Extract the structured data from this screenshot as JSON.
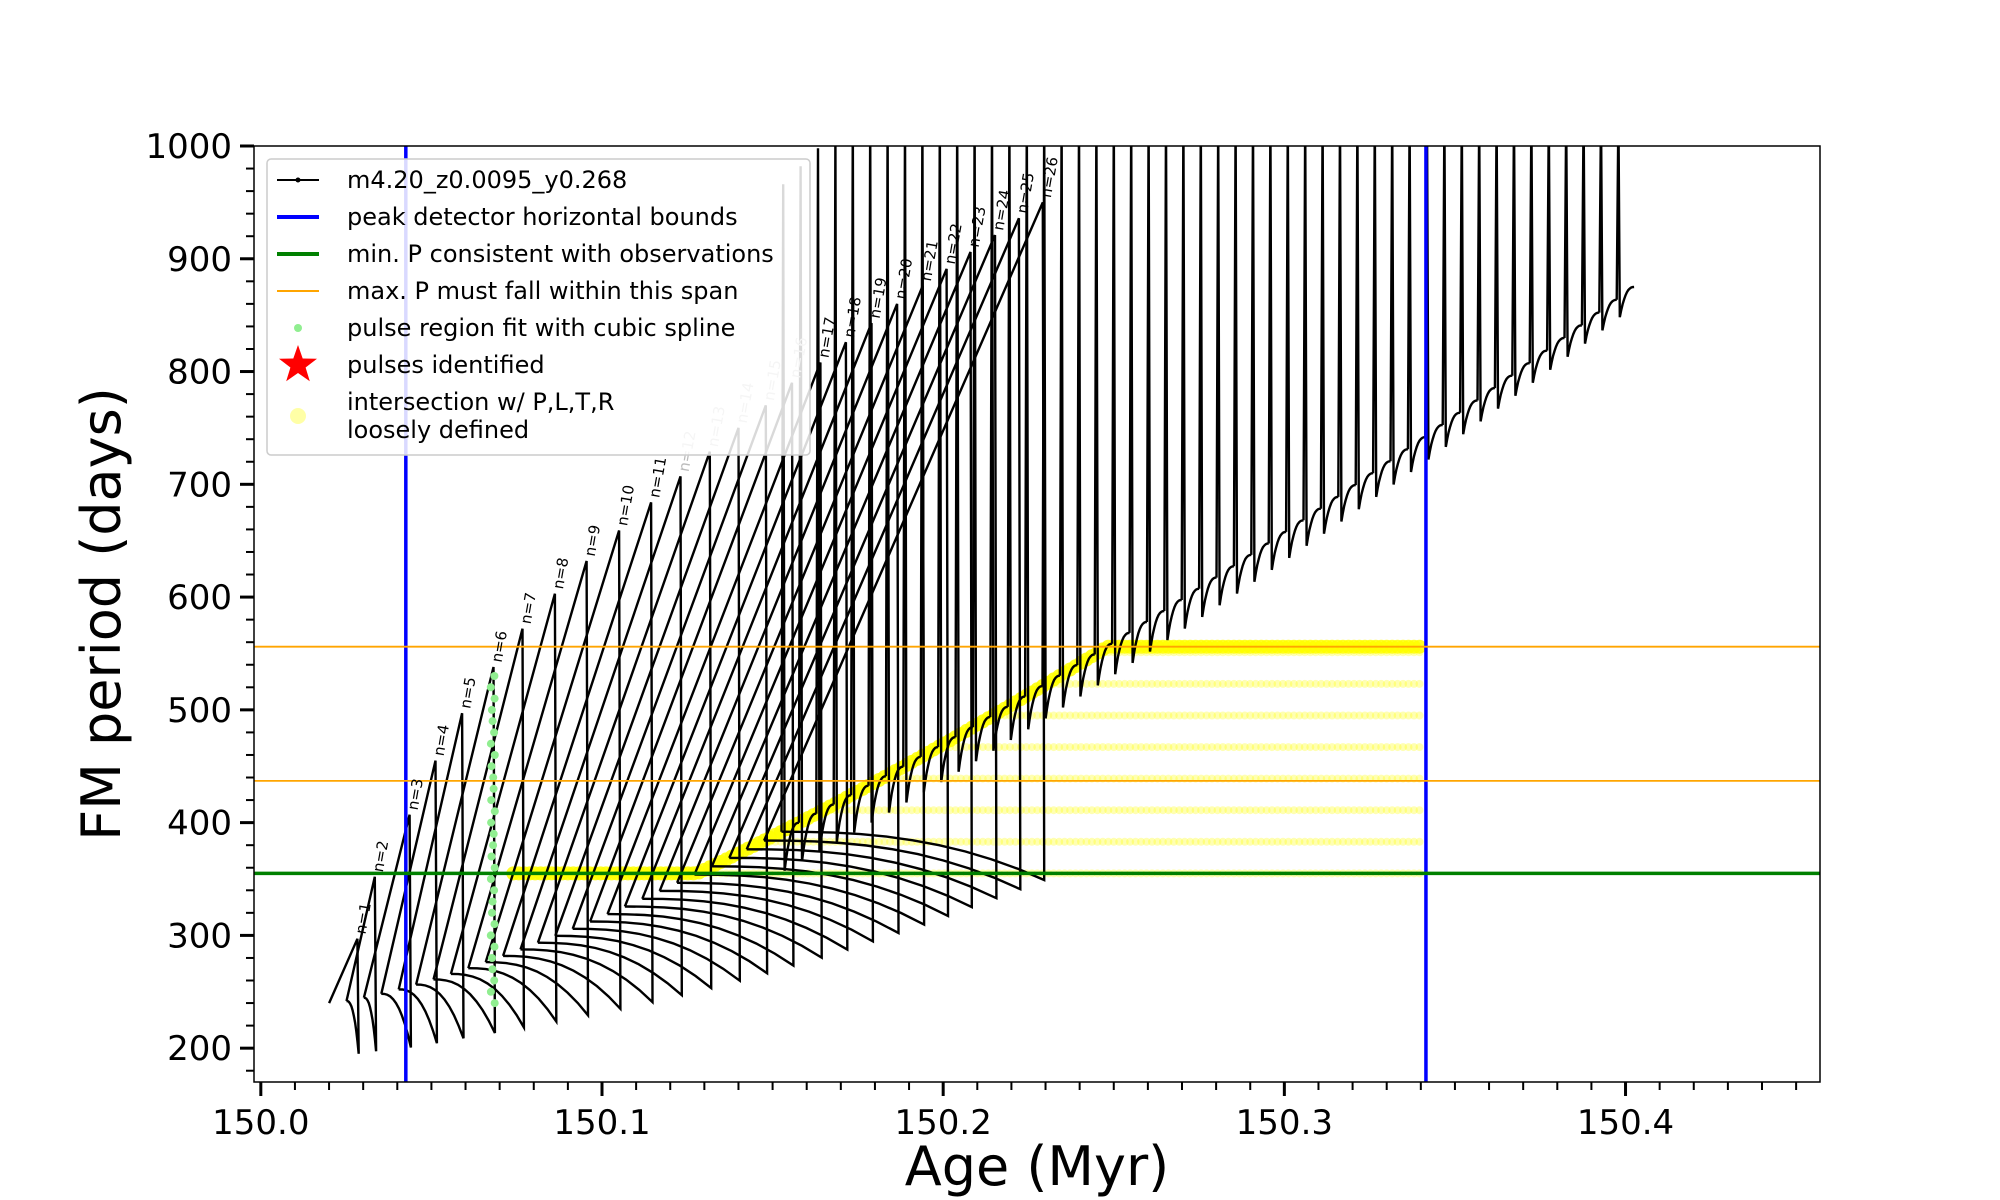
{
  "chart_data": {
    "type": "line",
    "title": "",
    "xlabel": "Age (Myr)",
    "ylabel": "FM period (days)",
    "xlim": [
      149.998,
      150.457
    ],
    "ylim": [
      170,
      1000
    ],
    "xticks_major": [
      150.0,
      150.1,
      150.2,
      150.3,
      150.4
    ],
    "xtick_labels": [
      "150.0",
      "150.1",
      "150.2",
      "150.3",
      "150.4"
    ],
    "xtick_minor_step": 0.01,
    "yticks_major": [
      200,
      300,
      400,
      500,
      600,
      700,
      800,
      900,
      1000
    ],
    "ytick_labels": [
      "200",
      "300",
      "400",
      "500",
      "600",
      "700",
      "800",
      "900",
      "1000"
    ],
    "ytick_minor_step": 20,
    "grid": false,
    "legend_position": "top-left",
    "legend": [
      {
        "key": "track",
        "label": "m4.20_z0.0095_y0.268",
        "color": "#000000",
        "marker": "line-dot"
      },
      {
        "key": "peak_bounds",
        "label": "peak detector horizontal bounds",
        "color": "#0000ff",
        "marker": "line"
      },
      {
        "key": "min_p",
        "label": "min. P consistent with observations",
        "color": "#008000",
        "marker": "line"
      },
      {
        "key": "max_p",
        "label": "max. P must fall within this span",
        "color": "#ffa500",
        "marker": "thin-line"
      },
      {
        "key": "spline",
        "label": "pulse region fit with cubic spline",
        "color": "#90ee90",
        "marker": "dot"
      },
      {
        "key": "pulses",
        "label": "pulses identified",
        "color": "#ff0000",
        "marker": "star"
      },
      {
        "key": "intersection",
        "label": "intersection w/ P,L,T,R",
        "label2": "loosely defined",
        "color": "#ffff00",
        "marker": "faint-dot"
      }
    ],
    "reference_lines": {
      "vertical_blue_x": [
        150.0425,
        150.3415
      ],
      "horizontal_green_y": 355,
      "horizontal_orange_y": [
        437,
        556
      ]
    },
    "track": {
      "t_start": 150.02,
      "pulse_interval": 0.0051,
      "n_pulses": 75,
      "baseline_start": 240,
      "baseline_end": 875,
      "min_start": 180,
      "min_end": 950,
      "clip_ymax": 1000
    },
    "pulse_peaks": [
      {
        "label": "n=1",
        "x": 150.0283,
        "y": 297,
        "faded": false
      },
      {
        "label": "n=2",
        "x": 150.0334,
        "y": 352,
        "faded": false
      },
      {
        "label": "n=3",
        "x": 150.0436,
        "y": 407,
        "faded": false
      },
      {
        "label": "n=4",
        "x": 150.0512,
        "y": 455,
        "faded": false
      },
      {
        "label": "n=5",
        "x": 150.059,
        "y": 497,
        "faded": false
      },
      {
        "label": "n=6",
        "x": 150.0682,
        "y": 538,
        "faded": false
      },
      {
        "label": "n=7",
        "x": 150.0767,
        "y": 572,
        "faded": false
      },
      {
        "label": "n=8",
        "x": 150.0862,
        "y": 603,
        "faded": false
      },
      {
        "label": "n=9",
        "x": 150.0955,
        "y": 632,
        "faded": false
      },
      {
        "label": "n=10",
        "x": 150.105,
        "y": 659,
        "faded": false
      },
      {
        "label": "n=11",
        "x": 150.1144,
        "y": 684,
        "faded": false
      },
      {
        "label": "n=12",
        "x": 150.123,
        "y": 707,
        "faded": true
      },
      {
        "label": "n=13",
        "x": 150.1316,
        "y": 729,
        "faded": true
      },
      {
        "label": "n=14",
        "x": 150.14,
        "y": 750,
        "faded": true
      },
      {
        "label": "n=15",
        "x": 150.148,
        "y": 770,
        "faded": true
      },
      {
        "label": "n=16",
        "x": 150.1557,
        "y": 790,
        "faded": true
      },
      {
        "label": "n=17",
        "x": 150.164,
        "y": 808,
        "faded": false
      },
      {
        "label": "n=18",
        "x": 150.1715,
        "y": 826,
        "faded": false
      },
      {
        "label": "n=19",
        "x": 150.179,
        "y": 843,
        "faded": false
      },
      {
        "label": "n=20",
        "x": 150.1865,
        "y": 860,
        "faded": false
      },
      {
        "label": "n=21",
        "x": 150.194,
        "y": 876,
        "faded": false
      },
      {
        "label": "n=22",
        "x": 150.201,
        "y": 891,
        "faded": false
      },
      {
        "label": "n=23",
        "x": 150.208,
        "y": 906,
        "faded": false
      },
      {
        "label": "n=24",
        "x": 150.2152,
        "y": 921,
        "faded": false
      },
      {
        "label": "n=25",
        "x": 150.2222,
        "y": 936,
        "faded": false
      },
      {
        "label": "n=26",
        "x": 150.2292,
        "y": 950,
        "faded": false
      }
    ],
    "spline_region": {
      "x": 150.068,
      "y_min": 240,
      "y_max": 538
    },
    "intersection_region": {
      "x_start": 150.074,
      "x_end": 150.34,
      "y_min": 355,
      "y_max": 556
    }
  }
}
